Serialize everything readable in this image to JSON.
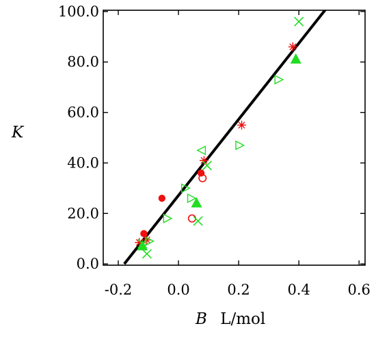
{
  "chart_data": {
    "type": "scatter",
    "title": "",
    "xlabel": {
      "symbol": "B",
      "unit": "L/mol"
    },
    "ylabel": "K",
    "xlim": [
      -0.25,
      0.62
    ],
    "ylim": [
      -0.5,
      100.5
    ],
    "xticks": [
      {
        "value": -0.2,
        "label": "-0.2"
      },
      {
        "value": 0.0,
        "label": "0.0"
      },
      {
        "value": 0.2,
        "label": "0.2"
      },
      {
        "value": 0.4,
        "label": "0.4"
      },
      {
        "value": 0.6,
        "label": "0.6"
      }
    ],
    "yticks": [
      {
        "value": 0,
        "label": "0.0"
      },
      {
        "value": 20,
        "label": "20.0"
      },
      {
        "value": 40,
        "label": "40.0"
      },
      {
        "value": 60,
        "label": "60.0"
      },
      {
        "value": 80,
        "label": "80.0"
      },
      {
        "value": 100,
        "label": "100.0"
      }
    ],
    "grid": false,
    "legend": "none",
    "fit_line": {
      "x": [
        -0.18,
        0.49
      ],
      "y": [
        0.0,
        101.0
      ],
      "color": "#000000"
    },
    "series": [
      {
        "marker": "filled-circle",
        "color": "#ee1111",
        "points": [
          [
            -0.115,
            12
          ],
          [
            -0.055,
            26
          ],
          [
            0.075,
            36
          ]
        ]
      },
      {
        "marker": "open-circle",
        "color": "#ee1111",
        "points": [
          [
            0.045,
            18
          ],
          [
            0.08,
            34
          ]
        ]
      },
      {
        "marker": "star",
        "color": "#ee1111",
        "points": [
          [
            -0.13,
            8.5
          ],
          [
            -0.105,
            9.5
          ],
          [
            0.085,
            41
          ],
          [
            0.21,
            55
          ],
          [
            0.38,
            86
          ]
        ]
      },
      {
        "marker": "x",
        "color": "#22dd22",
        "points": [
          [
            -0.12,
            8
          ],
          [
            -0.105,
            4
          ],
          [
            0.065,
            17
          ],
          [
            0.095,
            39
          ],
          [
            0.4,
            96
          ]
        ]
      },
      {
        "marker": "triangle-right-open",
        "color": "#22dd22",
        "points": [
          [
            -0.1,
            9
          ],
          [
            -0.04,
            18
          ],
          [
            0.02,
            30
          ],
          [
            0.04,
            26
          ],
          [
            0.2,
            47
          ],
          [
            0.33,
            73
          ]
        ]
      },
      {
        "marker": "triangle-left-open",
        "color": "#22dd22",
        "points": [
          [
            0.08,
            45
          ]
        ]
      },
      {
        "marker": "triangle-up-filled",
        "color": "#22dd22",
        "points": [
          [
            -0.12,
            7
          ],
          [
            0.06,
            24
          ],
          [
            0.39,
            81
          ]
        ]
      }
    ]
  }
}
